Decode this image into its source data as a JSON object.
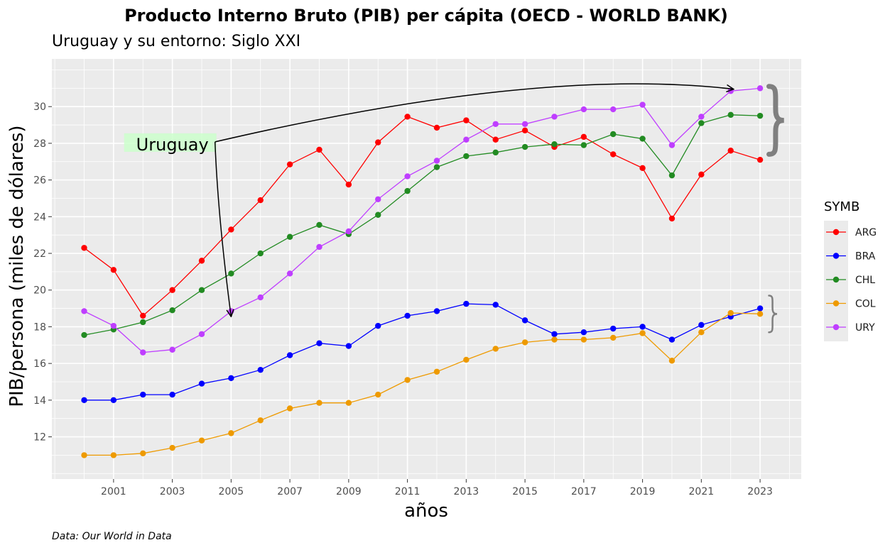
{
  "chart_data": {
    "type": "line",
    "title": "Producto Interno Bruto (PIB) per cápita     (OECD - WORLD BANK)",
    "subtitle": "Uruguay y su entorno: Siglo XXI",
    "xlabel": "años",
    "ylabel": "PIB/persona (miles de dólares)",
    "caption": "Data: Our World in Data",
    "xlim": [
      1998.9,
      2024.4
    ],
    "ylim": [
      9.7,
      32.6
    ],
    "x_ticks": [
      2001,
      2003,
      2005,
      2007,
      2009,
      2011,
      2013,
      2015,
      2017,
      2019,
      2021,
      2023
    ],
    "y_ticks": [
      12,
      14,
      16,
      18,
      20,
      22,
      24,
      26,
      28,
      30
    ],
    "grid": true,
    "legend": {
      "title": "SYMB",
      "position": "right"
    },
    "x": [
      2000,
      2001,
      2002,
      2003,
      2004,
      2005,
      2006,
      2007,
      2008,
      2009,
      2010,
      2011,
      2012,
      2013,
      2014,
      2015,
      2016,
      2017,
      2018,
      2019,
      2020,
      2021,
      2022,
      2023
    ],
    "series": [
      {
        "name": "ARG",
        "color": "#ff0000",
        "values": [
          22.3,
          21.1,
          18.6,
          20.0,
          21.6,
          23.3,
          24.9,
          26.85,
          27.65,
          25.75,
          28.05,
          29.45,
          28.85,
          29.25,
          28.2,
          28.7,
          27.8,
          28.35,
          27.4,
          26.65,
          23.9,
          26.3,
          27.6,
          27.1
        ]
      },
      {
        "name": "BRA",
        "color": "#0000ff",
        "values": [
          14.0,
          14.0,
          14.3,
          14.3,
          14.9,
          15.2,
          15.65,
          16.45,
          17.1,
          16.95,
          18.05,
          18.6,
          18.85,
          19.25,
          19.2,
          18.35,
          17.6,
          17.7,
          17.9,
          18.0,
          17.3,
          18.1,
          18.55,
          19.0
        ]
      },
      {
        "name": "CHL",
        "color": "#228b22",
        "values": [
          17.55,
          17.85,
          18.25,
          18.9,
          20.0,
          20.9,
          22.0,
          22.9,
          23.55,
          23.05,
          24.1,
          25.4,
          26.7,
          27.3,
          27.5,
          27.8,
          27.95,
          27.9,
          28.5,
          28.25,
          26.25,
          29.1,
          29.55,
          29.5
        ]
      },
      {
        "name": "COL",
        "color": "#ee9a00",
        "values": [
          11.0,
          11.0,
          11.1,
          11.4,
          11.8,
          12.2,
          12.9,
          13.55,
          13.85,
          13.85,
          14.3,
          15.1,
          15.55,
          16.2,
          16.8,
          17.15,
          17.3,
          17.3,
          17.4,
          17.65,
          16.15,
          17.7,
          18.75,
          18.7
        ]
      },
      {
        "name": "URY",
        "color": "#bf3eff",
        "values": [
          18.85,
          18.05,
          16.6,
          16.75,
          17.6,
          18.85,
          19.6,
          20.9,
          22.35,
          23.2,
          24.95,
          26.2,
          27.05,
          28.2,
          29.05,
          29.05,
          29.45,
          29.85,
          29.85,
          30.1,
          27.9,
          29.45,
          30.85,
          31.0
        ]
      }
    ],
    "annotations": {
      "label": "Uruguay",
      "label_fill": "#ccffcc",
      "label_at": {
        "x": 2004.5,
        "y": 28.0
      },
      "arrows": [
        {
          "to": {
            "x": 2022.1,
            "y": 30.95
          },
          "via": {
            "x": 2015.5,
            "y": 32.2
          }
        },
        {
          "to": {
            "x": 2005.0,
            "y": 18.55
          },
          "via": {
            "x": 2004.55,
            "y": 24.0
          }
        }
      ],
      "braces": [
        {
          "color": "#7f7f7f",
          "x": 2023.3,
          "y_range": [
            27.4,
            31.1
          ]
        },
        {
          "color": "#7f7f7f",
          "x": 2023.3,
          "y_range": [
            17.7,
            19.7
          ]
        }
      ]
    }
  }
}
